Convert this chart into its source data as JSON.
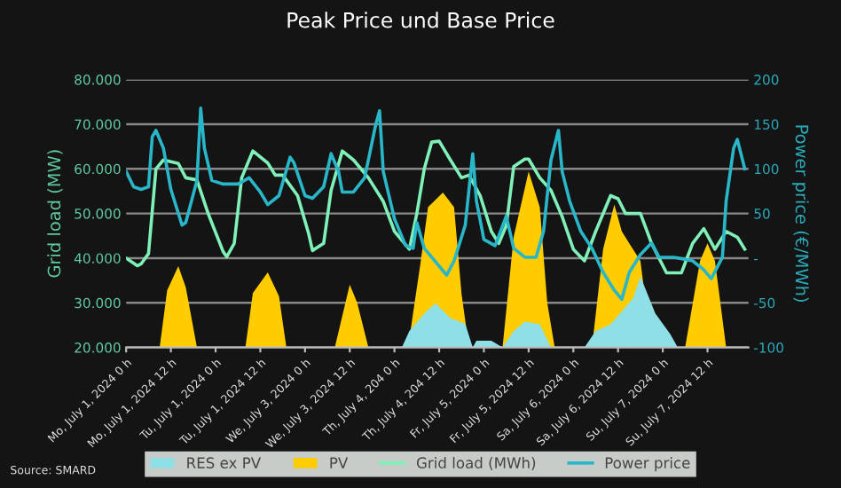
{
  "chart_data": {
    "type": "line",
    "title": "Peak Price und Base Price",
    "ylabel": "Grid load (MW)",
    "y2label": "Power price (€/MWh)",
    "annotations": [
      "Source: SMARD"
    ],
    "xlim": [
      "2024-07-01T00:00",
      "2024-07-07T23:00"
    ],
    "xticks": [
      {
        "value": "2024-07-01T00:00",
        "label": "Mo, July 1, 2024 0 h"
      },
      {
        "value": "2024-07-01T12:00",
        "label": "Mo, July 1, 2024 12 h"
      },
      {
        "value": "2024-07-02T00:00",
        "label": "Tu, July 1, 2024 0 h"
      },
      {
        "value": "2024-07-02T12:00",
        "label": "Tu, July 1, 2024 12 h"
      },
      {
        "value": "2024-07-03T00:00",
        "label": "We, July 3, 2024 0 h"
      },
      {
        "value": "2024-07-03T12:00",
        "label": "We, July 3, 2024 12 h"
      },
      {
        "value": "2024-07-04T00:00",
        "label": "Th, July 4, 204 0 h"
      },
      {
        "value": "2024-07-04T12:00",
        "label": "Th, July 4, 204 12 h"
      },
      {
        "value": "2024-07-05T00:00",
        "label": "Fr, July 5, 2024 0 h"
      },
      {
        "value": "2024-07-05T12:00",
        "label": "Fr, July 5, 2024 12 h"
      },
      {
        "value": "2024-07-06T00:00",
        "label": "Sa, July 6, 2024 0 h"
      },
      {
        "value": "2024-07-06T12:00",
        "label": "Sa, July 6, 2024 12 h"
      },
      {
        "value": "2024-07-07T00:00",
        "label": "Su, July 7, 2024 0 h"
      },
      {
        "value": "2024-07-07T12:00",
        "label": "Su, July 7, 2024 12 h"
      }
    ],
    "ylim": [
      20000,
      80000
    ],
    "yticks": [
      {
        "value": 20000,
        "label": "20.000"
      },
      {
        "value": 30000,
        "label": "30.000"
      },
      {
        "value": 40000,
        "label": "40.000"
      },
      {
        "value": 50000,
        "label": "50.000"
      },
      {
        "value": 60000,
        "label": "60.000"
      },
      {
        "value": 70000,
        "label": "70.000"
      },
      {
        "value": 80000,
        "label": "80.000"
      }
    ],
    "y2lim": [
      -100,
      200
    ],
    "y2ticks": [
      -100,
      -50,
      {
        "value": 0,
        "label": "-"
      },
      50,
      100,
      150,
      200
    ],
    "grid": "y",
    "legend": "bottom",
    "series": [
      {
        "name": "RES ex PV",
        "type": "area",
        "color": "#8ee0e6",
        "x": [
          "2024-07-04T02:00",
          "2024-07-04T04:00",
          "2024-07-04T08:00",
          "2024-07-04T11:00",
          "2024-07-04T15:00",
          "2024-07-04T19:00",
          "2024-07-04T21:00",
          "2024-07-04T22:00",
          "2024-07-05T02:00",
          "2024-07-05T05:00",
          "2024-07-05T08:00",
          "2024-07-05T11:00",
          "2024-07-05T15:00",
          "2024-07-05T18:00",
          "2024-07-06T03:00",
          "2024-07-06T06:00",
          "2024-07-06T10:00",
          "2024-07-06T16:00",
          "2024-07-06T18:00",
          "2024-07-06T22:00",
          "2024-07-07T02:00",
          "2024-07-07T04:00"
        ],
        "values": [
          20000,
          23700,
          27600,
          29900,
          26600,
          25300,
          20000,
          21500,
          21500,
          20000,
          23700,
          25800,
          25200,
          20000,
          20000,
          23700,
          25200,
          31000,
          35900,
          27600,
          23000,
          20000
        ]
      },
      {
        "name": "PV",
        "type": "area",
        "color": "#ffcc00",
        "x": [
          "2024-07-01T09:00",
          "2024-07-01T11:00",
          "2024-07-01T14:00",
          "2024-07-01T16:00",
          "2024-07-01T19:00",
          "2024-07-02T08:00",
          "2024-07-02T10:00",
          "2024-07-02T14:00",
          "2024-07-02T17:00",
          "2024-07-02T19:00",
          "2024-07-03T08:00",
          "2024-07-03T12:00",
          "2024-07-03T14:00",
          "2024-07-03T17:00",
          "2024-07-04T02:00",
          "2024-07-04T04:00",
          "2024-07-04T07:00",
          "2024-07-04T09:00",
          "2024-07-04T13:00",
          "2024-07-04T16:00",
          "2024-07-04T18:00",
          "2024-07-04T20:00",
          "2024-07-05T05:00",
          "2024-07-05T08:00",
          "2024-07-05T12:00",
          "2024-07-05T15:00",
          "2024-07-05T17:00",
          "2024-07-05T19:00",
          "2024-07-06T05:00",
          "2024-07-06T08:00",
          "2024-07-06T11:00",
          "2024-07-06T13:00",
          "2024-07-06T15:00",
          "2024-07-06T18:00",
          "2024-07-06T19:00",
          "2024-07-06T21:00",
          "2024-07-07T06:00",
          "2024-07-07T10:00",
          "2024-07-07T12:00",
          "2024-07-07T14:00",
          "2024-07-07T17:00"
        ],
        "values": [
          20000,
          32800,
          38200,
          33500,
          20000,
          20000,
          32200,
          36800,
          31500,
          20000,
          20000,
          34100,
          30000,
          20000,
          20000,
          22000,
          39000,
          51400,
          54700,
          51400,
          32000,
          20000,
          20000,
          44800,
          59400,
          51400,
          30000,
          20000,
          20000,
          42100,
          52000,
          46000,
          43300,
          39400,
          32800,
          20000,
          20000,
          39400,
          43300,
          39400,
          20000
        ]
      },
      {
        "name": "Grid load (MWh)",
        "color": "#7ef0b8",
        "x": [
          "2024-07-01T00:00",
          "2024-07-01T03:00",
          "2024-07-01T04:00",
          "2024-07-01T06:00",
          "2024-07-01T08:00",
          "2024-07-01T10:00",
          "2024-07-01T14:00",
          "2024-07-01T16:00",
          "2024-07-01T19:00",
          "2024-07-01T22:00",
          "2024-07-02T02:00",
          "2024-07-02T03:00",
          "2024-07-02T05:00",
          "2024-07-02T07:00",
          "2024-07-02T10:00",
          "2024-07-02T14:00",
          "2024-07-02T16:00",
          "2024-07-02T18:00",
          "2024-07-02T22:00",
          "2024-07-03T01:00",
          "2024-07-03T02:00",
          "2024-07-03T05:00",
          "2024-07-03T07:00",
          "2024-07-03T10:00",
          "2024-07-03T13:00",
          "2024-07-03T17:00",
          "2024-07-03T21:00",
          "2024-07-04T00:00",
          "2024-07-04T04:00",
          "2024-07-04T06:00",
          "2024-07-04T08:00",
          "2024-07-04T10:00",
          "2024-07-04T12:00",
          "2024-07-04T15:00",
          "2024-07-04T18:00",
          "2024-07-04T20:00",
          "2024-07-04T23:00",
          "2024-07-05T02:00",
          "2024-07-05T04:00",
          "2024-07-05T06:00",
          "2024-07-05T08:00",
          "2024-07-05T11:00",
          "2024-07-05T12:00",
          "2024-07-05T15:00",
          "2024-07-05T18:00",
          "2024-07-05T21:00",
          "2024-07-06T00:00",
          "2024-07-06T03:00",
          "2024-07-06T06:00",
          "2024-07-06T10:00",
          "2024-07-06T12:00",
          "2024-07-06T14:00",
          "2024-07-06T18:00",
          "2024-07-06T21:00",
          "2024-07-07T01:00",
          "2024-07-07T05:00",
          "2024-07-07T08:00",
          "2024-07-07T11:00",
          "2024-07-07T14:00",
          "2024-07-07T17:00",
          "2024-07-07T20:00",
          "2024-07-07T22:00"
        ],
        "values": [
          40000,
          38300,
          38700,
          41000,
          60000,
          62000,
          61200,
          58000,
          57500,
          50000,
          41500,
          40300,
          43300,
          58000,
          64000,
          61300,
          58600,
          58600,
          54000,
          45400,
          41700,
          43300,
          55200,
          64000,
          62000,
          58000,
          52700,
          46000,
          42000,
          50000,
          60000,
          66000,
          66200,
          62000,
          58000,
          58600,
          54000,
          46000,
          43300,
          47300,
          60500,
          62200,
          62200,
          58000,
          55200,
          49300,
          42000,
          39400,
          46000,
          54000,
          53300,
          50000,
          50000,
          43300,
          36700,
          36700,
          43300,
          46600,
          42000,
          46000,
          44700,
          42000
        ]
      },
      {
        "name": "Power price",
        "axis": "y2",
        "color": "#29b6c8",
        "x": [
          "2024-07-01T00:00",
          "2024-07-01T02:00",
          "2024-07-01T04:00",
          "2024-07-01T06:00",
          "2024-07-01T07:00",
          "2024-07-01T08:00",
          "2024-07-01T10:00",
          "2024-07-01T12:00",
          "2024-07-01T15:00",
          "2024-07-01T16:00",
          "2024-07-01T19:00",
          "2024-07-01T20:00",
          "2024-07-01T21:00",
          "2024-07-01T23:00",
          "2024-07-02T02:00",
          "2024-07-02T06:00",
          "2024-07-02T09:00",
          "2024-07-02T12:00",
          "2024-07-02T14:00",
          "2024-07-02T17:00",
          "2024-07-02T20:00",
          "2024-07-02T21:00",
          "2024-07-03T00:00",
          "2024-07-03T02:00",
          "2024-07-03T05:00",
          "2024-07-03T07:00",
          "2024-07-03T09:00",
          "2024-07-03T10:00",
          "2024-07-03T13:00",
          "2024-07-03T16:00",
          "2024-07-03T19:00",
          "2024-07-03T20:00",
          "2024-07-03T21:00",
          "2024-07-04T00:00",
          "2024-07-04T03:00",
          "2024-07-04T05:00",
          "2024-07-04T06:00",
          "2024-07-04T08:00",
          "2024-07-04T12:00",
          "2024-07-04T14:00",
          "2024-07-04T16:00",
          "2024-07-04T19:00",
          "2024-07-04T21:00",
          "2024-07-04T22:00",
          "2024-07-05T00:00",
          "2024-07-05T03:00",
          "2024-07-05T06:00",
          "2024-07-05T08:00",
          "2024-07-05T11:00",
          "2024-07-05T14:00",
          "2024-07-05T16:00",
          "2024-07-05T18:00",
          "2024-07-05T20:00",
          "2024-07-05T21:00",
          "2024-07-05T23:00",
          "2024-07-06T02:00",
          "2024-07-06T05:00",
          "2024-07-06T08:00",
          "2024-07-06T11:00",
          "2024-07-06T13:00",
          "2024-07-06T15:00",
          "2024-07-06T18:00",
          "2024-07-06T21:00",
          "2024-07-06T23:00",
          "2024-07-07T03:00",
          "2024-07-07T08:00",
          "2024-07-07T11:00",
          "2024-07-07T13:00",
          "2024-07-07T16:00",
          "2024-07-07T17:00",
          "2024-07-07T19:00",
          "2024-07-07T20:00",
          "2024-07-07T22:00"
        ],
        "values": [
          97,
          80,
          77,
          80,
          136,
          143,
          123,
          77,
          37,
          40,
          87,
          168,
          123,
          87,
          83,
          83,
          90,
          74,
          60,
          70,
          113,
          107,
          70,
          67,
          80,
          117,
          97,
          74,
          74,
          90,
          150,
          165,
          97,
          44,
          14,
          11,
          40,
          11,
          -9,
          -19,
          -3,
          37,
          117,
          64,
          21,
          14,
          47,
          11,
          1,
          1,
          30,
          110,
          143,
          97,
          64,
          30,
          11,
          -16,
          -36,
          -46,
          -16,
          4,
          17,
          1,
          1,
          -3,
          -13,
          -23,
          1,
          64,
          123,
          133,
          100
        ]
      }
    ]
  }
}
